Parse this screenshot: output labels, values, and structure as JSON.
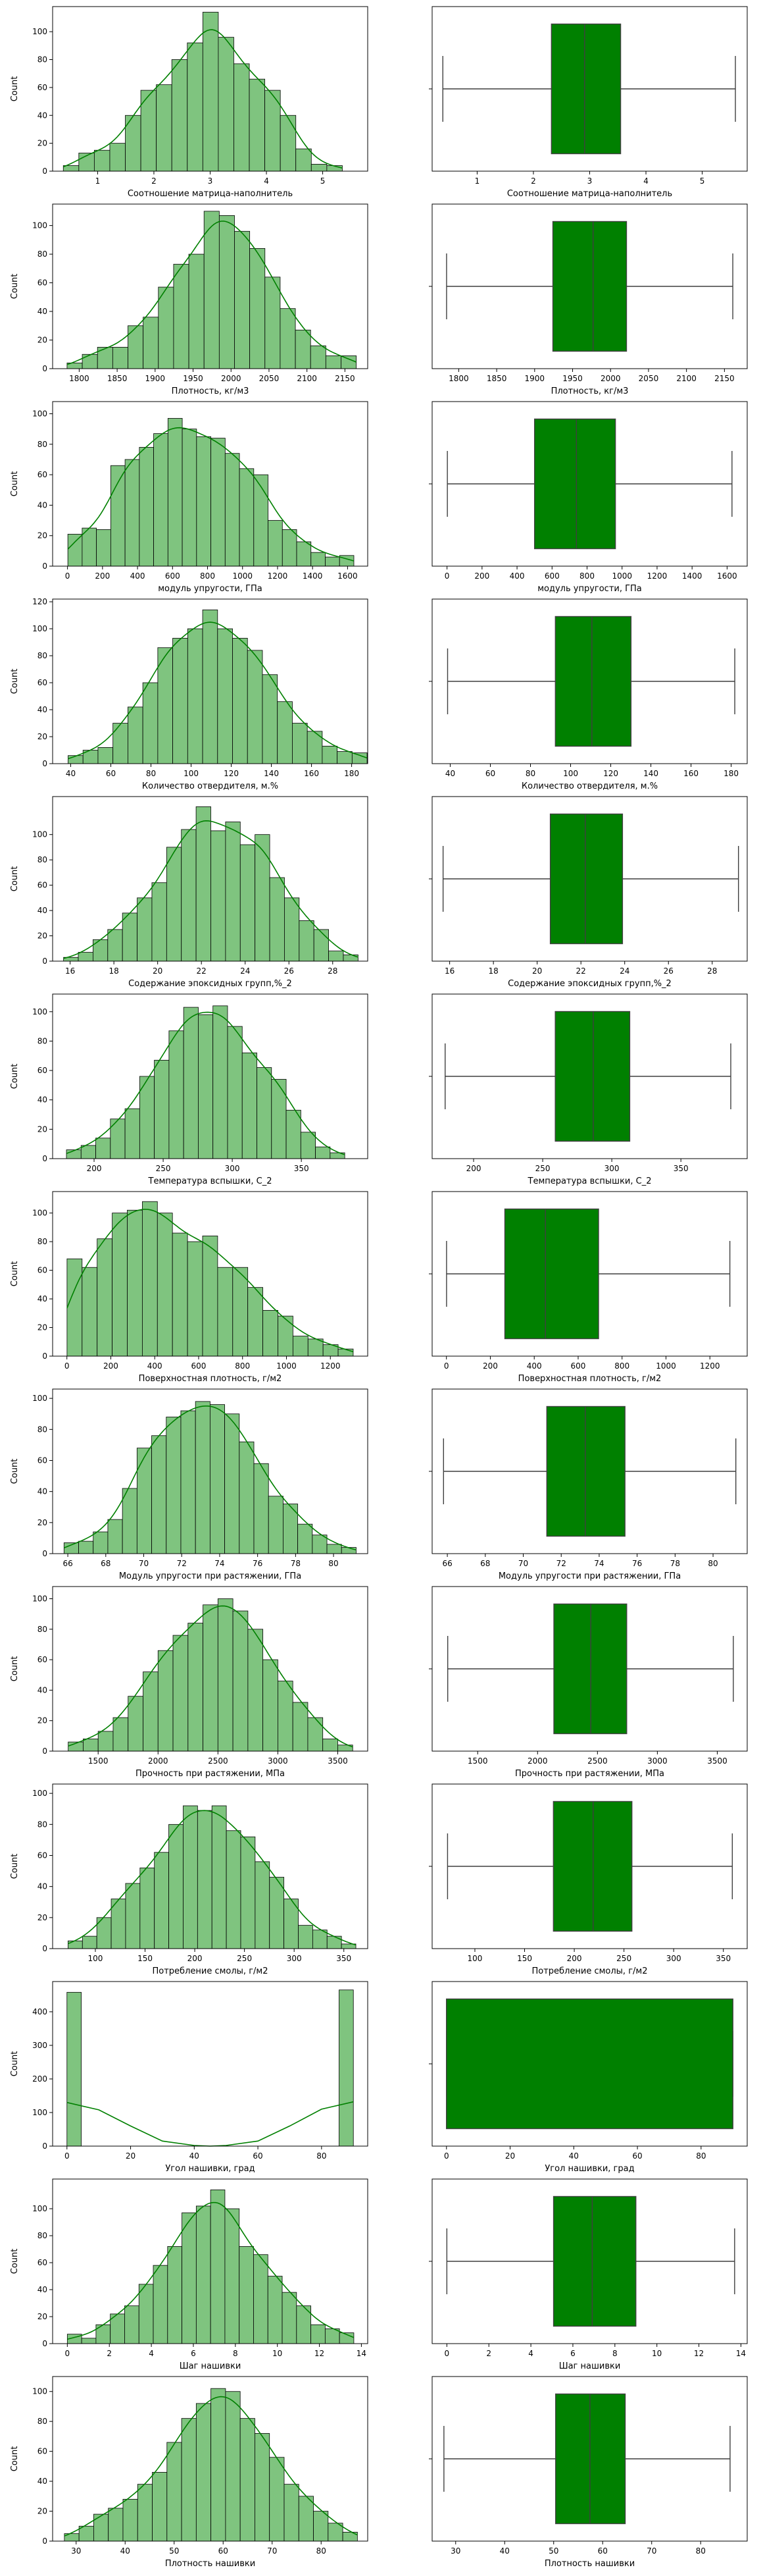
{
  "colors": {
    "hist_fill": "#7fc47f",
    "hist_edge": "#000000",
    "kde_line": "#008000",
    "box_fill": "#008000",
    "whisker": "#3f3f3f"
  },
  "chart_data": [
    {
      "xlabel": "Соотношение матрица-наполнитель",
      "ylabel": "Count",
      "type": "bar",
      "xlim": [
        0.2,
        5.8
      ],
      "ylim": [
        0,
        118
      ],
      "bin_start": 0.39,
      "bin_width": 0.2755,
      "xticks": [
        1,
        2,
        3,
        4,
        5
      ],
      "yticks": [
        0,
        20,
        40,
        60,
        80,
        100
      ],
      "counts": [
        4,
        13,
        15,
        20,
        40,
        58,
        62,
        80,
        92,
        114,
        96,
        77,
        66,
        58,
        40,
        16,
        5,
        4
      ],
      "box": {
        "min": 0.39,
        "q1": 2.32,
        "median": 2.91,
        "q3": 3.55,
        "max": 5.59
      },
      "grid": false
    },
    {
      "xlabel": "Плотность, кг/м3",
      "ylabel": "Count",
      "type": "bar",
      "xlim": [
        1765,
        2180
      ],
      "ylim": [
        0,
        115
      ],
      "bin_start": 1784,
      "bin_width": 20.05,
      "xticks": [
        1800,
        1850,
        1900,
        1950,
        2000,
        2050,
        2100,
        2150
      ],
      "yticks": [
        0,
        20,
        40,
        60,
        80,
        100
      ],
      "counts": [
        4,
        10,
        15,
        15,
        30,
        36,
        57,
        73,
        80,
        110,
        107,
        96,
        84,
        64,
        42,
        27,
        16,
        9,
        9
      ],
      "box": {
        "min": 1784,
        "q1": 1924,
        "median": 1977,
        "q3": 2021,
        "max": 2161
      },
      "grid": false
    },
    {
      "xlabel": "модуль упругости, ГПа",
      "ylabel": "Count",
      "type": "bar",
      "xlim": [
        -85,
        1715
      ],
      "ylim": [
        0,
        108
      ],
      "bin_start": 2,
      "bin_width": 81.7,
      "xticks": [
        0,
        200,
        400,
        600,
        800,
        1000,
        1200,
        1400,
        1600
      ],
      "yticks": [
        0,
        20,
        40,
        60,
        80,
        100
      ],
      "counts": [
        21,
        25,
        24,
        66,
        70,
        78,
        87,
        97,
        90,
        85,
        84,
        74,
        64,
        60,
        30,
        24,
        16,
        9,
        6,
        7
      ],
      "box": {
        "min": 2,
        "q1": 500,
        "median": 739,
        "q3": 962,
        "max": 1628
      },
      "grid": false
    },
    {
      "xlabel": "Количество отвердителя, м.%",
      "ylabel": "Count",
      "type": "bar",
      "xlim": [
        31,
        188
      ],
      "ylim": [
        0,
        122
      ],
      "bin_start": 38.7,
      "bin_width": 7.45,
      "xticks": [
        40,
        60,
        80,
        100,
        120,
        140,
        160,
        180
      ],
      "yticks": [
        0,
        20,
        40,
        60,
        80,
        100,
        120
      ],
      "counts": [
        6,
        10,
        12,
        30,
        42,
        60,
        86,
        93,
        100,
        114,
        100,
        93,
        84,
        66,
        46,
        30,
        24,
        13,
        9,
        8
      ],
      "box": {
        "min": 38.7,
        "q1": 92.4,
        "median": 110.6,
        "q3": 130.1,
        "max": 181.8
      },
      "grid": false
    },
    {
      "xlabel": "Содержание эпоксидных групп,%_2",
      "ylabel": "Count",
      "type": "bar",
      "xlim": [
        15.2,
        29.6
      ],
      "ylim": [
        0,
        130
      ],
      "bin_start": 15.7,
      "bin_width": 0.673,
      "xticks": [
        16,
        18,
        20,
        22,
        24,
        26,
        28
      ],
      "yticks": [
        0,
        20,
        40,
        60,
        80,
        100
      ],
      "counts": [
        3,
        7,
        17,
        25,
        38,
        50,
        62,
        90,
        104,
        122,
        103,
        110,
        92,
        100,
        66,
        50,
        32,
        25,
        8,
        5
      ],
      "box": {
        "min": 15.7,
        "q1": 20.6,
        "median": 22.2,
        "q3": 23.9,
        "max": 29.2
      },
      "grid": false
    },
    {
      "xlabel": "Температура вспышки, С_2",
      "ylabel": "Count",
      "type": "bar",
      "xlim": [
        170,
        398
      ],
      "ylim": [
        0,
        112
      ],
      "bin_start": 180,
      "bin_width": 10.6,
      "xticks": [
        200,
        250,
        300,
        350
      ],
      "yticks": [
        0,
        20,
        40,
        60,
        80,
        100
      ],
      "counts": [
        6,
        9,
        14,
        27,
        34,
        56,
        67,
        87,
        103,
        98,
        104,
        90,
        72,
        62,
        54,
        33,
        18,
        8,
        4
      ],
      "box": {
        "min": 179.4,
        "q1": 259.1,
        "median": 286.6,
        "q3": 313.0,
        "max": 386.1
      },
      "grid": false
    },
    {
      "xlabel": "Поверхностная плотность, г/м2",
      "ylabel": "Count",
      "type": "bar",
      "xlim": [
        -65,
        1370
      ],
      "ylim": [
        0,
        115
      ],
      "bin_start": 0.6,
      "bin_width": 68.6,
      "xticks": [
        0,
        200,
        400,
        600,
        800,
        1000,
        1200
      ],
      "yticks": [
        0,
        20,
        40,
        60,
        80,
        100
      ],
      "counts": [
        68,
        62,
        82,
        100,
        102,
        108,
        100,
        86,
        80,
        84,
        62,
        62,
        48,
        32,
        28,
        14,
        12,
        8,
        5
      ],
      "box": {
        "min": 0.6,
        "q1": 266,
        "median": 451,
        "q3": 693,
        "max": 1291
      },
      "grid": false
    },
    {
      "xlabel": "Модуль упругости при растяжении, ГПа",
      "ylabel": "Count",
      "type": "bar",
      "xlim": [
        65.2,
        81.8
      ],
      "ylim": [
        0,
        106
      ],
      "bin_start": 65.8,
      "bin_width": 0.7696,
      "xticks": [
        66,
        68,
        70,
        72,
        74,
        76,
        78,
        80
      ],
      "yticks": [
        0,
        20,
        40,
        60,
        80,
        100
      ],
      "counts": [
        7,
        8,
        14,
        22,
        42,
        68,
        76,
        88,
        92,
        98,
        96,
        90,
        72,
        58,
        37,
        32,
        19,
        12,
        6,
        4
      ],
      "box": {
        "min": 65.8,
        "q1": 71.24,
        "median": 73.27,
        "q3": 75.36,
        "max": 81.2
      },
      "grid": false
    },
    {
      "xlabel": "Прочность при растяжении, МПа",
      "ylabel": "Count",
      "type": "bar",
      "xlim": [
        1120,
        3750
      ],
      "ylim": [
        0,
        108
      ],
      "bin_start": 1250,
      "bin_width": 125,
      "xticks": [
        1500,
        2000,
        2500,
        3000,
        3500
      ],
      "yticks": [
        0,
        20,
        40,
        60,
        80,
        100
      ],
      "counts": [
        6,
        8,
        13,
        22,
        36,
        52,
        66,
        76,
        84,
        96,
        100,
        92,
        80,
        60,
        46,
        32,
        22,
        8,
        4
      ],
      "box": {
        "min": 1250,
        "q1": 2136,
        "median": 2444,
        "q3": 2744,
        "max": 3634
      },
      "grid": false
    },
    {
      "xlabel": "Потребление смолы, г/м2",
      "ylabel": "Count",
      "type": "bar",
      "xlim": [
        57,
        374
      ],
      "ylim": [
        0,
        106
      ],
      "bin_start": 72.5,
      "bin_width": 14.48,
      "xticks": [
        100,
        150,
        200,
        250,
        300,
        350
      ],
      "yticks": [
        0,
        20,
        40,
        60,
        80,
        100
      ],
      "counts": [
        5,
        8,
        20,
        32,
        42,
        52,
        62,
        80,
        92,
        89,
        92,
        76,
        72,
        56,
        46,
        32,
        15,
        12,
        8,
        3
      ],
      "box": {
        "min": 72.5,
        "q1": 179,
        "median": 219,
        "q3": 258,
        "max": 359
      },
      "grid": false
    },
    {
      "xlabel": "Угол нашивки, град",
      "ylabel": "Count",
      "type": "bar",
      "xlim": [
        -4.5,
        94.5
      ],
      "ylim": [
        0,
        490
      ],
      "bin_start": 0,
      "bin_width": 4.5,
      "xticks": [
        0,
        20,
        40,
        60,
        80
      ],
      "yticks": [
        0,
        100,
        200,
        300,
        400
      ],
      "counts": [
        458,
        0,
        0,
        0,
        0,
        0,
        0,
        0,
        0,
        0,
        0,
        0,
        0,
        0,
        0,
        0,
        0,
        0,
        0,
        465
      ],
      "kde": [
        [
          0,
          130
        ],
        [
          10,
          108
        ],
        [
          20,
          60
        ],
        [
          30,
          15
        ],
        [
          40,
          2
        ],
        [
          45,
          0
        ],
        [
          50,
          2
        ],
        [
          60,
          15
        ],
        [
          70,
          60
        ],
        [
          80,
          110
        ],
        [
          90,
          132
        ]
      ],
      "box": {
        "min": 0,
        "q1": 0,
        "median": 0,
        "q3": 90,
        "max": 90
      },
      "grid": false
    },
    {
      "xlabel": "Шаг нашивки",
      "ylabel": "Count",
      "type": "bar",
      "xlim": [
        -0.7,
        14.3
      ],
      "ylim": [
        0,
        122
      ],
      "bin_start": 0,
      "bin_width": 0.682,
      "xticks": [
        0,
        2,
        4,
        6,
        8,
        10,
        12,
        14
      ],
      "yticks": [
        0,
        20,
        40,
        60,
        80,
        100
      ],
      "counts": [
        7,
        4,
        14,
        22,
        28,
        44,
        58,
        72,
        97,
        102,
        114,
        100,
        72,
        66,
        50,
        38,
        28,
        14,
        11,
        8
      ],
      "box": {
        "min": 0,
        "q1": 5.08,
        "median": 6.92,
        "q3": 9.0,
        "max": 13.7
      },
      "grid": false
    },
    {
      "xlabel": "Плотность нашивки",
      "ylabel": "Count",
      "type": "bar",
      "xlim": [
        25.2,
        89.5
      ],
      "ylim": [
        0,
        110
      ],
      "bin_start": 27.6,
      "bin_width": 2.99,
      "xticks": [
        30,
        40,
        50,
        60,
        70,
        80
      ],
      "yticks": [
        0,
        20,
        40,
        60,
        80,
        100
      ],
      "counts": [
        5,
        10,
        18,
        22,
        28,
        38,
        46,
        66,
        82,
        92,
        102,
        100,
        82,
        72,
        56,
        38,
        30,
        20,
        12,
        6
      ],
      "box": {
        "min": 27.6,
        "q1": 50.4,
        "median": 57.4,
        "q3": 64.6,
        "max": 86.0
      },
      "grid": false
    }
  ]
}
